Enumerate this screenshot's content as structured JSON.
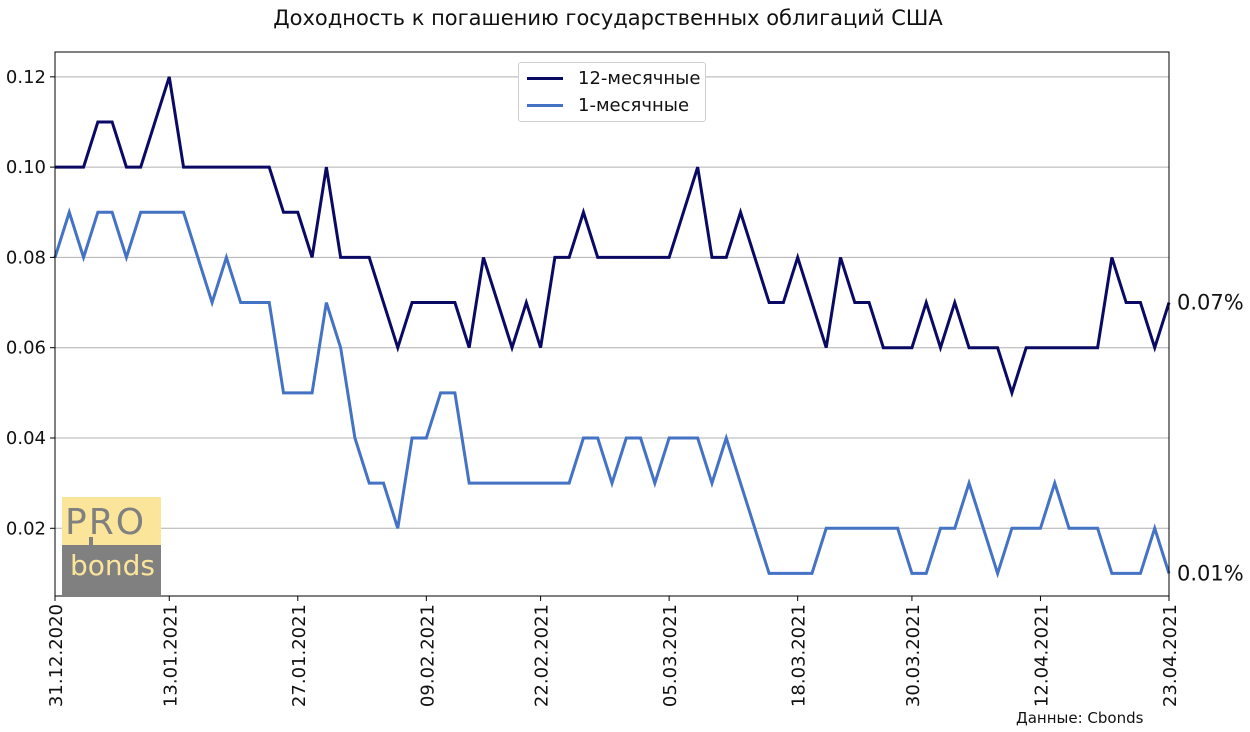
{
  "chart_data": {
    "type": "line",
    "title": "Доходность к погашению государственных облигаций США",
    "source_note": "Данные: Cbonds",
    "xlabel": "",
    "ylabel": "",
    "ylim": [
      0.005,
      0.1255
    ],
    "y_ticks": [
      0.02,
      0.04,
      0.06,
      0.08,
      0.1,
      0.12
    ],
    "y_tick_labels": [
      "0.02",
      "0.04",
      "0.06",
      "0.08",
      "0.10",
      "0.12"
    ],
    "x_tick_labels": [
      "31.12.2020",
      "13.01.2021",
      "27.01.2021",
      "09.02.2021",
      "22.02.2021",
      "05.03.2021",
      "18.03.2021",
      "30.03.2021",
      "12.04.2021",
      "23.04.2021"
    ],
    "x_tick_index": [
      0,
      8,
      17,
      26,
      34,
      43,
      52,
      60,
      69,
      78
    ],
    "grid": "horizontal",
    "legend_position": "top-center",
    "end_labels": [
      "0.07%",
      "0.01%"
    ],
    "series": [
      {
        "name": "12-месячные",
        "color": "#0a0a64",
        "values": [
          0.1,
          0.1,
          0.1,
          0.11,
          0.11,
          0.1,
          0.1,
          0.11,
          0.12,
          0.1,
          0.1,
          0.1,
          0.1,
          0.1,
          0.1,
          0.1,
          0.09,
          0.09,
          0.08,
          0.1,
          0.08,
          0.08,
          0.08,
          0.07,
          0.06,
          0.07,
          0.07,
          0.07,
          0.07,
          0.06,
          0.08,
          0.07,
          0.06,
          0.07,
          0.06,
          0.08,
          0.08,
          0.09,
          0.08,
          0.08,
          0.08,
          0.08,
          0.08,
          0.08,
          0.09,
          0.1,
          0.08,
          0.08,
          0.09,
          0.08,
          0.07,
          0.07,
          0.08,
          0.07,
          0.06,
          0.08,
          0.07,
          0.07,
          0.06,
          0.06,
          0.06,
          0.07,
          0.06,
          0.07,
          0.06,
          0.06,
          0.06,
          0.05,
          0.06,
          0.06,
          0.06,
          0.06,
          0.06,
          0.06,
          0.08,
          0.07,
          0.07,
          0.06,
          0.07
        ]
      },
      {
        "name": "1-месячные",
        "color": "#4472c4",
        "values": [
          0.08,
          0.09,
          0.08,
          0.09,
          0.09,
          0.08,
          0.09,
          0.09,
          0.09,
          0.09,
          0.08,
          0.07,
          0.08,
          0.07,
          0.07,
          0.07,
          0.05,
          0.05,
          0.05,
          0.07,
          0.06,
          0.04,
          0.03,
          0.03,
          0.02,
          0.04,
          0.04,
          0.05,
          0.05,
          0.03,
          0.03,
          0.03,
          0.03,
          0.03,
          0.03,
          0.03,
          0.03,
          0.04,
          0.04,
          0.03,
          0.04,
          0.04,
          0.03,
          0.04,
          0.04,
          0.04,
          0.03,
          0.04,
          0.03,
          0.02,
          0.01,
          0.01,
          0.01,
          0.01,
          0.02,
          0.02,
          0.02,
          0.02,
          0.02,
          0.02,
          0.01,
          0.01,
          0.02,
          0.02,
          0.03,
          0.02,
          0.01,
          0.02,
          0.02,
          0.02,
          0.03,
          0.02,
          0.02,
          0.02,
          0.01,
          0.01,
          0.01,
          0.02,
          0.01
        ]
      }
    ]
  },
  "logo": {
    "top_text": "PRO",
    "bottom_text": "bonds",
    "top_color": "#fbe59b",
    "bottom_color": "#808080"
  }
}
